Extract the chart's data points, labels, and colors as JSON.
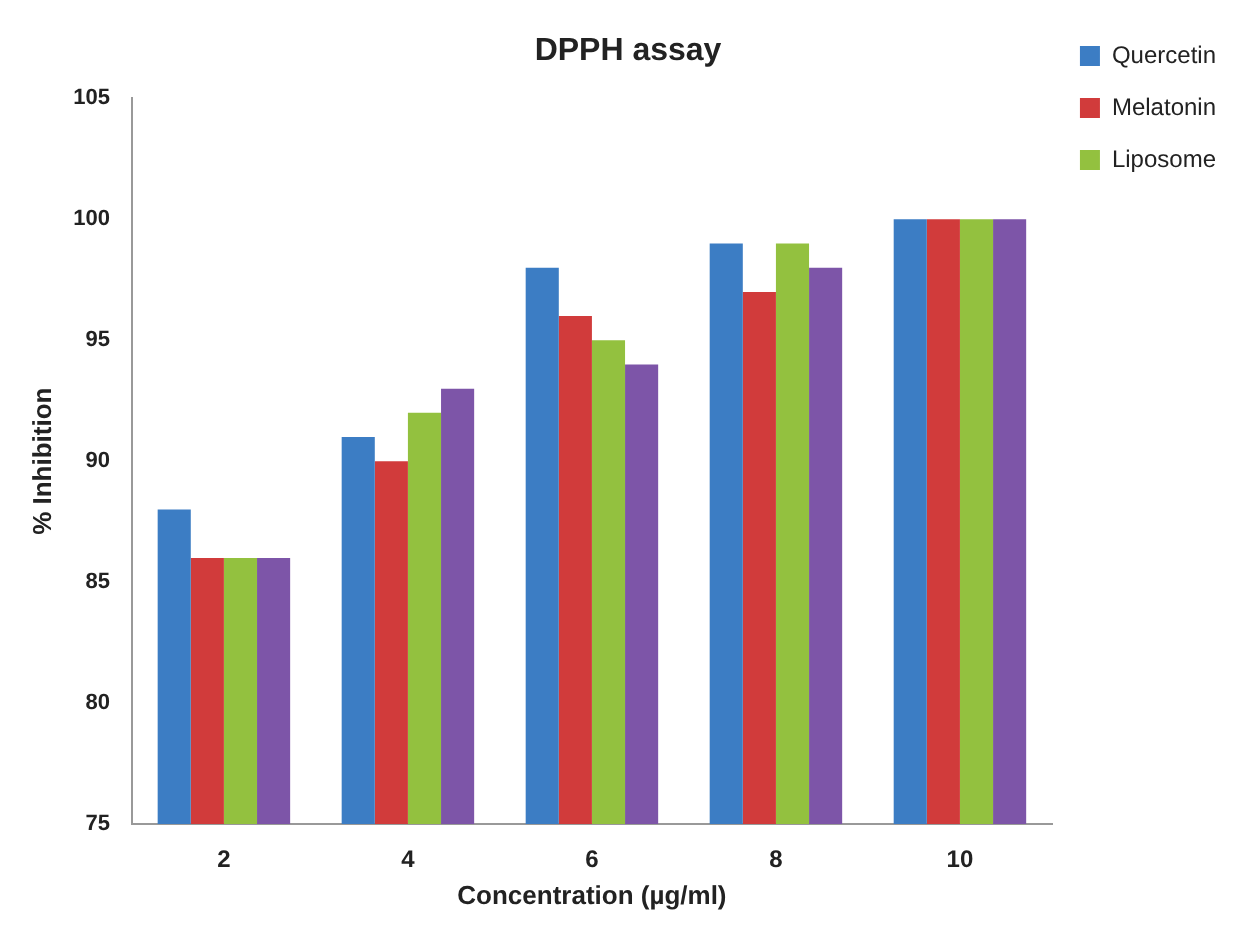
{
  "chart_data": {
    "type": "bar",
    "title": "DPPH assay",
    "xlabel": "Concentration (µg/ml)",
    "ylabel": "% Inhibition",
    "categories": [
      "2",
      "4",
      "6",
      "8",
      "10"
    ],
    "series": [
      {
        "name": "Quercetin",
        "color": "#3c7dc4",
        "values": [
          88,
          91,
          98,
          99,
          100
        ]
      },
      {
        "name": "Melatonin",
        "color": "#d13b3b",
        "values": [
          86,
          90,
          96,
          97,
          100
        ]
      },
      {
        "name": "Liposome",
        "color": "#93c13f",
        "values": [
          86,
          92,
          95,
          99,
          100
        ]
      },
      {
        "color": "#7d55a8",
        "values": [
          86,
          93,
          94,
          98,
          100
        ]
      }
    ],
    "ylim": [
      75,
      105
    ],
    "yticks": [
      75,
      80,
      85,
      90,
      95,
      100,
      105
    ],
    "grid": false,
    "legend": "top right"
  }
}
